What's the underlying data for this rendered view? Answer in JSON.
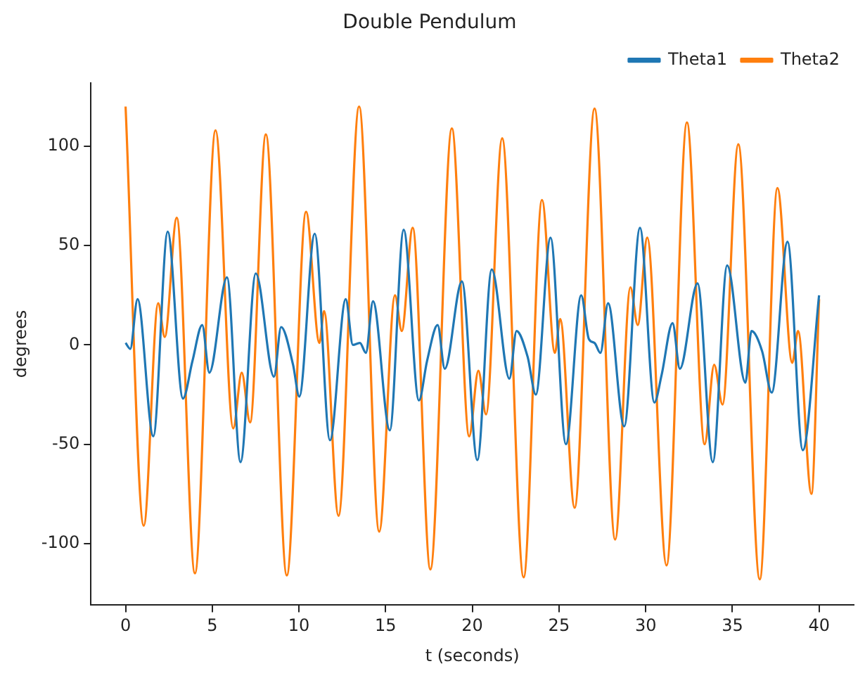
{
  "chart_data": {
    "type": "line",
    "title": "Double Pendulum",
    "xlabel": "t (seconds)",
    "ylabel": "degrees",
    "xlim": [
      -2,
      42
    ],
    "ylim": [
      -131,
      132
    ],
    "xticks": [
      0,
      5,
      10,
      15,
      20,
      25,
      30,
      35,
      40
    ],
    "yticks": [
      -100,
      -50,
      0,
      50,
      100
    ],
    "grid": false,
    "legend": "top right",
    "series": [
      {
        "name": "Theta1",
        "color": "#1f77b4",
        "x": [
          0,
          0.27,
          0.69,
          1.6,
          2.43,
          3.31,
          3.86,
          4.42,
          4.83,
          5.85,
          6.63,
          7.51,
          8.56,
          8.97,
          9.66,
          10.02,
          10.91,
          11.79,
          12.7,
          13.11,
          13.52,
          13.86,
          14.27,
          15.24,
          16.04,
          16.92,
          17.39,
          18.0,
          18.41,
          19.4,
          20.29,
          21.12,
          22.14,
          22.55,
          23.19,
          23.66,
          24.51,
          25.4,
          26.28,
          26.72,
          27.05,
          27.39,
          27.83,
          28.76,
          29.67,
          30.5,
          30.92,
          31.55,
          31.97,
          32.99,
          33.87,
          34.7,
          35.75,
          36.1,
          36.71,
          37.27,
          38.18,
          39.06,
          40
        ],
        "values": [
          1,
          -2,
          23,
          -46,
          57,
          -27,
          -8,
          10,
          -14,
          34,
          -59,
          36,
          -16,
          9,
          -10,
          -26,
          56,
          -48,
          23,
          0,
          1,
          -4,
          22,
          -43,
          58,
          -28,
          -8,
          10,
          -12,
          32,
          -58,
          38,
          -17,
          7,
          -6,
          -25,
          54,
          -50,
          25,
          3,
          1,
          -4,
          21,
          -41,
          59,
          -29,
          -15,
          11,
          -12,
          31,
          -59,
          40,
          -19,
          7,
          -3,
          -24,
          52,
          -53,
          25
        ]
      },
      {
        "name": "Theta2",
        "color": "#ff7f0e",
        "x": [
          0,
          1.05,
          1.88,
          2.26,
          2.95,
          4.0,
          5.19,
          6.21,
          6.7,
          7.18,
          8.09,
          9.3,
          10.41,
          11.18,
          11.45,
          12.28,
          13.47,
          14.63,
          15.54,
          15.93,
          16.56,
          17.58,
          18.82,
          19.82,
          20.35,
          20.79,
          21.72,
          22.96,
          24.02,
          24.76,
          25.07,
          25.9,
          27.05,
          28.24,
          29.12,
          29.54,
          30.09,
          31.2,
          32.38,
          33.4,
          33.95,
          34.43,
          35.34,
          36.58,
          37.6,
          38.45,
          38.79,
          39.56,
          40
        ],
        "values": [
          120,
          -91,
          21,
          4,
          64,
          -115,
          108,
          -42,
          -14,
          -39,
          106,
          -116,
          67,
          1,
          17,
          -86,
          120,
          -94,
          25,
          7,
          59,
          -113,
          109,
          -46,
          -13,
          -35,
          104,
          -117,
          73,
          -4,
          13,
          -82,
          119,
          -98,
          29,
          10,
          54,
          -111,
          112,
          -50,
          -10,
          -30,
          101,
          -118,
          79,
          -9,
          7,
          -75,
          23
        ]
      }
    ]
  }
}
